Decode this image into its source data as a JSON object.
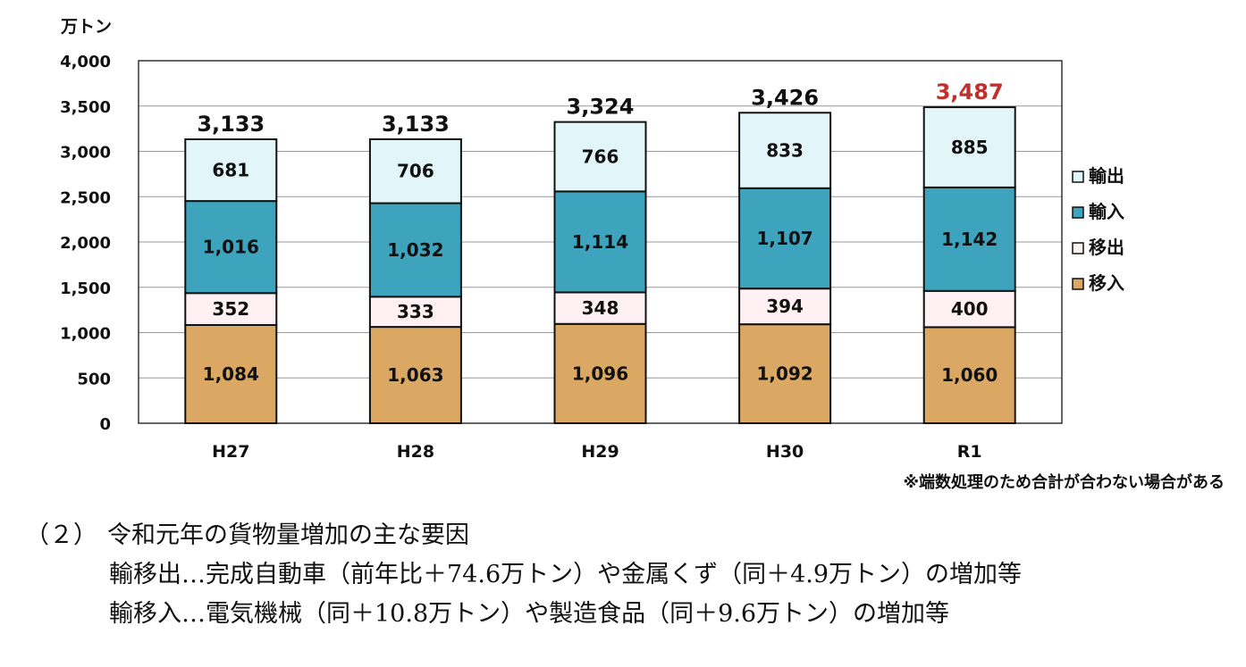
{
  "chart_data": {
    "type": "bar",
    "stacked": true,
    "unit_label": "万トン",
    "categories": [
      "H27",
      "H28",
      "H29",
      "H30",
      "R1"
    ],
    "ylim": [
      0,
      4000
    ],
    "yticks": [
      "0",
      "500",
      "1,000",
      "1,500",
      "2,000",
      "2,500",
      "3,000",
      "3,500",
      "4,000"
    ],
    "ytick_values": [
      0,
      500,
      1000,
      1500,
      2000,
      2500,
      3000,
      3500,
      4000
    ],
    "grid": true,
    "legend_position": "right",
    "series": [
      {
        "name": "移入",
        "color": "#dba863",
        "values": [
          1084,
          1063,
          1096,
          1092,
          1060
        ],
        "labels": [
          "1,084",
          "1,063",
          "1,096",
          "1,092",
          "1,060"
        ]
      },
      {
        "name": "移出",
        "color": "#fff0f4",
        "values": [
          352,
          333,
          348,
          394,
          400
        ],
        "labels": [
          "352",
          "333",
          "348",
          "394",
          "400"
        ]
      },
      {
        "name": "輸入",
        "color": "#3ea3bd",
        "values": [
          1016,
          1032,
          1114,
          1107,
          1142
        ],
        "labels": [
          "1,016",
          "1,032",
          "1,114",
          "1,107",
          "1,142"
        ]
      },
      {
        "name": "輸出",
        "color": "#e2f5f8",
        "values": [
          681,
          706,
          766,
          833,
          885
        ],
        "labels": [
          "681",
          "706",
          "766",
          "833",
          "885"
        ]
      }
    ],
    "totals": [
      3133,
      3133,
      3324,
      3426,
      3487
    ],
    "total_labels": [
      "3,133",
      "3,133",
      "3,324",
      "3,426",
      "3,487"
    ],
    "highlight_total_color": "#c0312b",
    "note": "※端数処理のため合計が合わない場合がある"
  },
  "text": {
    "heading_num": "（２）",
    "heading": "令和元年の貨物量増加の主な要因",
    "line1": "輸移出…完成自動車（前年比＋74.6万トン）や金属くず（同＋4.9万トン）の増加等",
    "line2": "輸移入…電気機械（同＋10.8万トン）や製造食品（同＋9.6万トン）の増加等"
  }
}
